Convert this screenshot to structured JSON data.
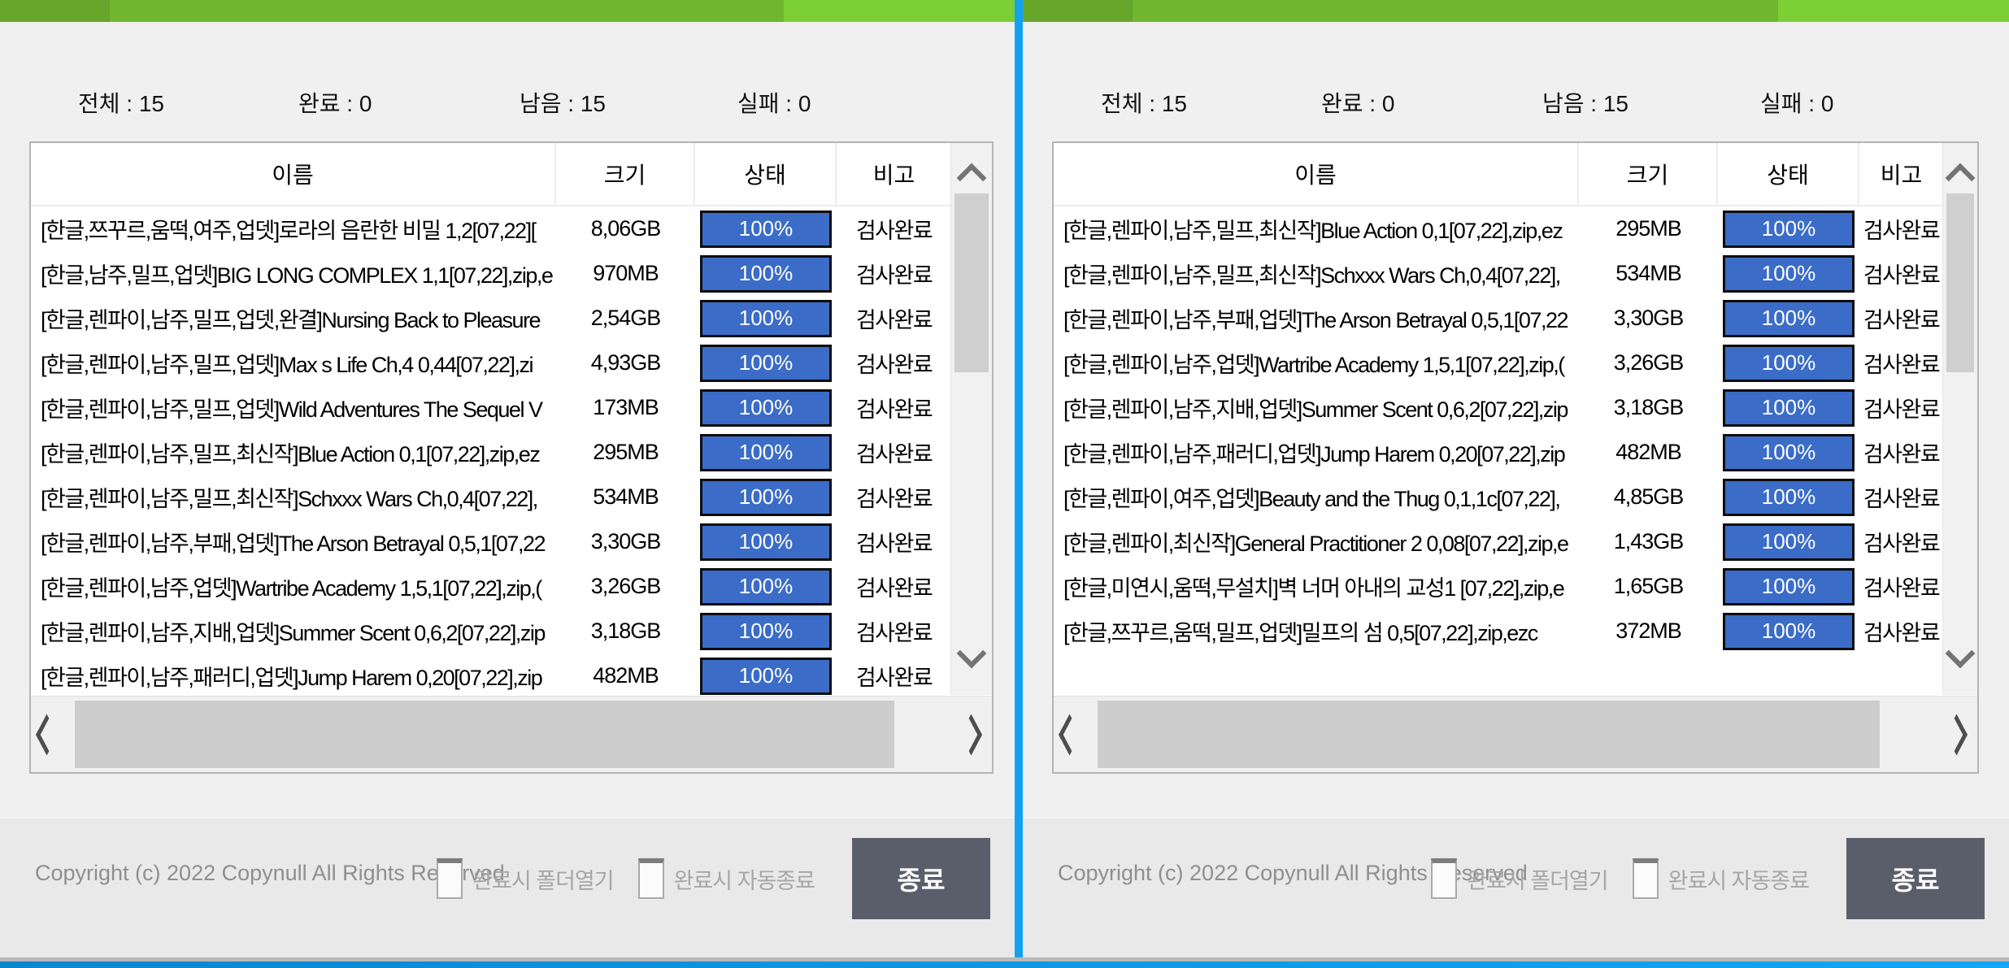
{
  "colors": {
    "titlebar_green_dark": "#68a52b",
    "titlebar_green_mid": "#70b72f",
    "titlebar_green_light": "#7ccf35",
    "window_divider_blue": "#12a2f0",
    "progress_bar_blue": "#3b6cc7",
    "exit_button_gray": "#5a5e6b"
  },
  "footer": {
    "copyright": "Copyright (c) 2022 Copynull All Rights Reserved",
    "open_folder_label": "완료시 폴더열기",
    "auto_exit_label": "완료시 자동종료",
    "exit_label": "종료"
  },
  "windows": [
    {
      "stats": [
        "전체 : 15",
        "완료 : 0",
        "남음 : 15",
        "실패 : 0"
      ],
      "table": {
        "headers": [
          "이름",
          "크기",
          "상태",
          "비고"
        ],
        "rows": [
          {
            "name": "[한글,쯔꾸르,움떡,여주,업뎃]로라의 음란한 비밀 1,2[07,22][",
            "size": "8,06GB",
            "progress": "100%",
            "note": "검사완료"
          },
          {
            "name": "[한글,남주,밀프,업뎃]BIG LONG COMPLEX 1,1[07,22],zip,e",
            "size": "970MB",
            "progress": "100%",
            "note": "검사완료"
          },
          {
            "name": "[한글,렌파이,남주,밀프,업뎃,완결]Nursing Back to Pleasure",
            "size": "2,54GB",
            "progress": "100%",
            "note": "검사완료"
          },
          {
            "name": "[한글,렌파이,남주,밀프,업뎃]Max s Life Ch,4 0,44[07,22],zi",
            "size": "4,93GB",
            "progress": "100%",
            "note": "검사완료"
          },
          {
            "name": "[한글,렌파이,남주,밀프,업뎃]Wild Adventures The Sequel V",
            "size": "173MB",
            "progress": "100%",
            "note": "검사완료"
          },
          {
            "name": "[한글,렌파이,남주,밀프,최신작]Blue Action 0,1[07,22],zip,ez",
            "size": "295MB",
            "progress": "100%",
            "note": "검사완료"
          },
          {
            "name": "[한글,렌파이,남주,밀프,최신작]Schxxx Wars Ch,0,4[07,22],",
            "size": "534MB",
            "progress": "100%",
            "note": "검사완료"
          },
          {
            "name": "[한글,렌파이,남주,부패,업뎃]The Arson Betrayal 0,5,1[07,22",
            "size": "3,30GB",
            "progress": "100%",
            "note": "검사완료"
          },
          {
            "name": "[한글,렌파이,남주,업뎃]Wartribe Academy 1,5,1[07,22],zip,(",
            "size": "3,26GB",
            "progress": "100%",
            "note": "검사완료"
          },
          {
            "name": "[한글,렌파이,남주,지배,업뎃]Summer Scent 0,6,2[07,22],zip",
            "size": "3,18GB",
            "progress": "100%",
            "note": "검사완료"
          },
          {
            "name": "[한글,렌파이,남주,패러디,업뎃]Jump Harem 0,20[07,22],zip",
            "size": "482MB",
            "progress": "100%",
            "note": "검사완료"
          }
        ]
      }
    },
    {
      "stats": [
        "전체 : 15",
        "완료 : 0",
        "남음 : 15",
        "실패 : 0"
      ],
      "table": {
        "headers": [
          "이름",
          "크기",
          "상태",
          "비고"
        ],
        "rows": [
          {
            "name": "[한글,렌파이,남주,밀프,최신작]Blue Action 0,1[07,22],zip,ez",
            "size": "295MB",
            "progress": "100%",
            "note": "검사완료"
          },
          {
            "name": "[한글,렌파이,남주,밀프,최신작]Schxxx Wars Ch,0,4[07,22],",
            "size": "534MB",
            "progress": "100%",
            "note": "검사완료"
          },
          {
            "name": "[한글,렌파이,남주,부패,업뎃]The Arson Betrayal 0,5,1[07,22",
            "size": "3,30GB",
            "progress": "100%",
            "note": "검사완료"
          },
          {
            "name": "[한글,렌파이,남주,업뎃]Wartribe Academy 1,5,1[07,22],zip,(",
            "size": "3,26GB",
            "progress": "100%",
            "note": "검사완료"
          },
          {
            "name": "[한글,렌파이,남주,지배,업뎃]Summer Scent 0,6,2[07,22],zip",
            "size": "3,18GB",
            "progress": "100%",
            "note": "검사완료"
          },
          {
            "name": "[한글,렌파이,남주,패러디,업뎃]Jump Harem 0,20[07,22],zip",
            "size": "482MB",
            "progress": "100%",
            "note": "검사완료"
          },
          {
            "name": "[한글,렌파이,여주,업뎃]Beauty and the Thug 0,1,1c[07,22],",
            "size": "4,85GB",
            "progress": "100%",
            "note": "검사완료"
          },
          {
            "name": "[한글,렌파이,최신작]General Practitioner 2 0,08[07,22],zip,e",
            "size": "1,43GB",
            "progress": "100%",
            "note": "검사완료"
          },
          {
            "name": "[한글,미연시,움떡,무설치]벽 너머 아내의 교성1 [07,22],zip,e",
            "size": "1,65GB",
            "progress": "100%",
            "note": "검사완료"
          },
          {
            "name": "[한글,쯔꾸르,움떡,밀프,업뎃]밀프의 섬 0,5[07,22],zip,ezc",
            "size": "372MB",
            "progress": "100%",
            "note": "검사완료"
          }
        ]
      }
    }
  ]
}
